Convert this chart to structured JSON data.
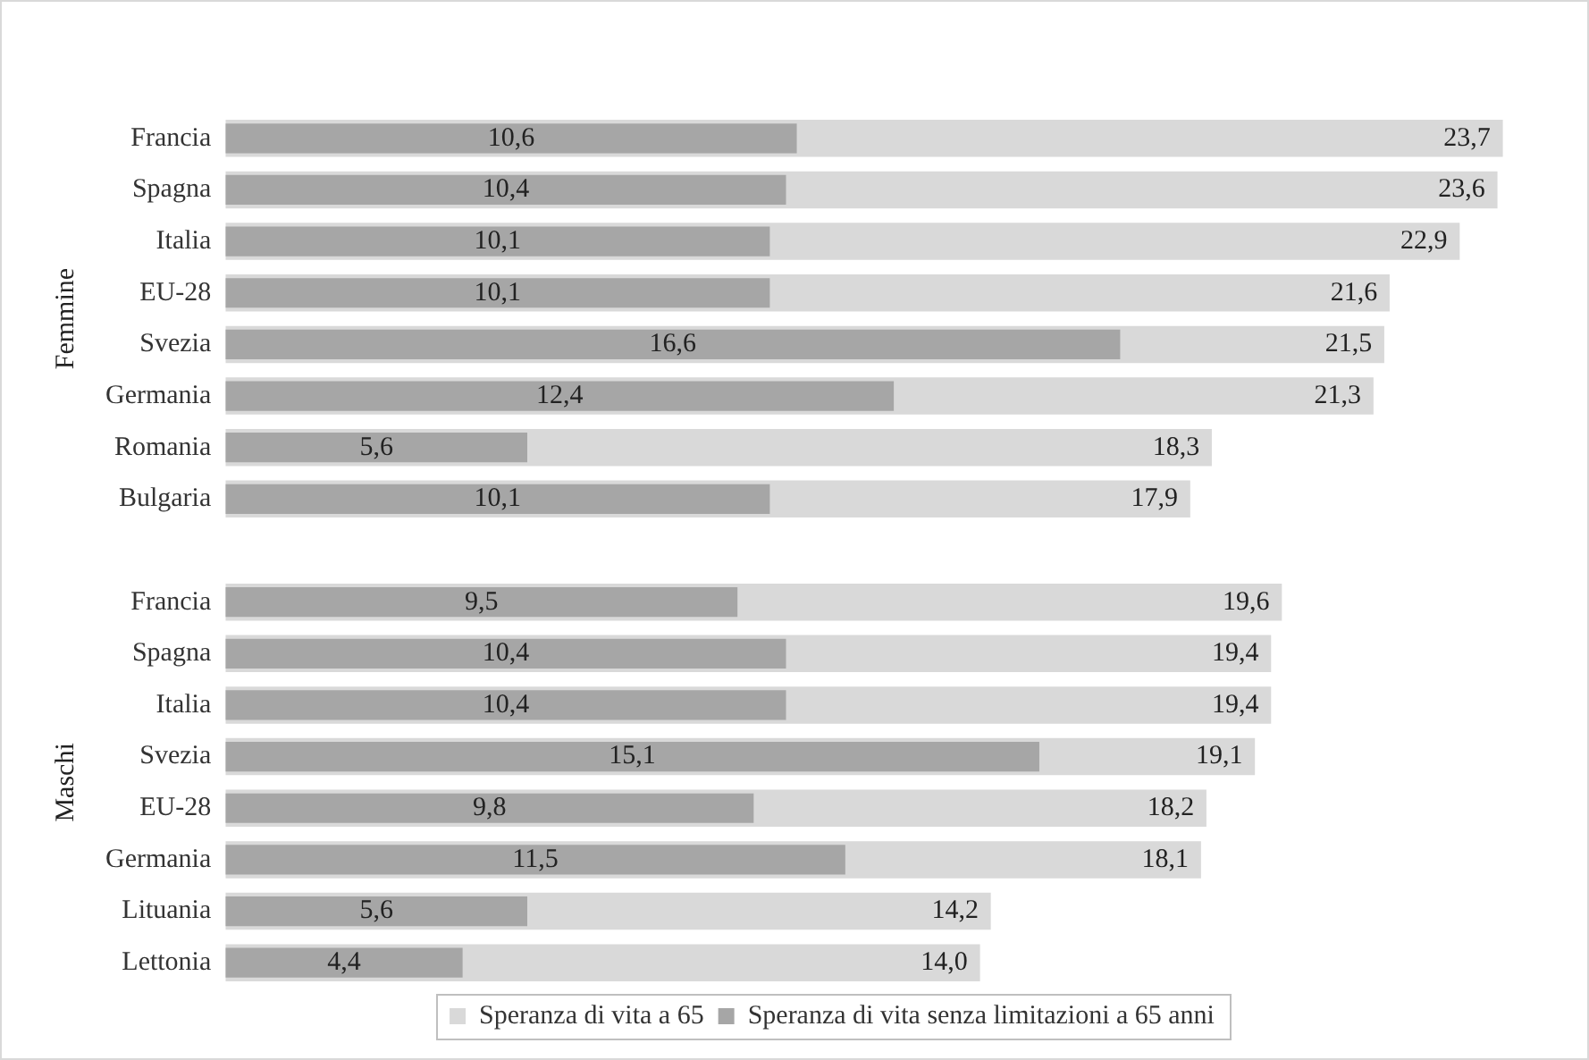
{
  "chart_data": {
    "type": "bar",
    "orientation": "horizontal",
    "legend": "bottom",
    "grid": false,
    "tick_labels": "y",
    "categories": [
      "Francia",
      "Spagna",
      "Italia",
      "EU-28",
      "Svezia",
      "Germania",
      "Romania",
      "Bulgaria",
      null,
      "Francia",
      "Spagna",
      "Italia",
      "Svezia",
      "EU-28",
      "Germania",
      "Lituania",
      "Lettonia"
    ],
    "series": [
      {
        "name": "Speranza di vita a 65",
        "color": "#d9d9d9",
        "values": [
          23.7,
          23.6,
          22.9,
          21.6,
          21.5,
          21.3,
          18.3,
          17.9,
          null,
          19.6,
          19.4,
          19.4,
          19.1,
          18.2,
          18.1,
          14.2,
          14.0
        ],
        "value_labels": [
          "23,7",
          "23,6",
          "22,9",
          "21,6",
          "21,5",
          "21,3",
          "18,3",
          "17,9",
          null,
          "19,6",
          "19,4",
          "19,4",
          "19,1",
          "18,2",
          "18,1",
          "14,2",
          "14,0"
        ]
      },
      {
        "name": "Speranza di vita senza limitazioni a 65 anni",
        "color": "#a6a6a6",
        "values": [
          10.6,
          10.4,
          10.1,
          10.1,
          16.6,
          12.4,
          5.6,
          10.1,
          null,
          9.5,
          10.4,
          10.4,
          15.1,
          9.8,
          11.5,
          5.6,
          4.4
        ],
        "value_labels": [
          "10,6",
          "10,4",
          "10,1",
          "10,1",
          "16,6",
          "12,4",
          "5,6",
          "10,1",
          null,
          "9,5",
          "10,4",
          "10,4",
          "15,1",
          "9,8",
          "11,5",
          "5,6",
          "4,4"
        ]
      }
    ],
    "annotations": [
      "Femmine",
      "Maschi"
    ]
  }
}
